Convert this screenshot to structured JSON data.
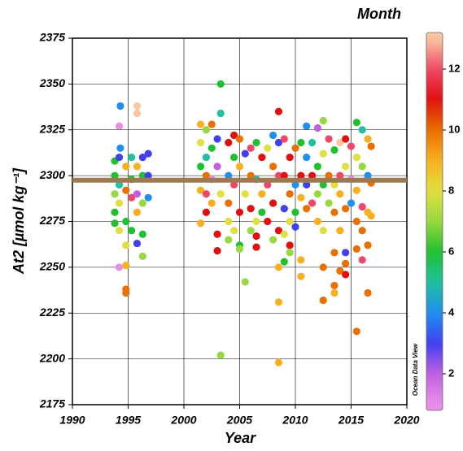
{
  "chart_data": {
    "type": "scatter",
    "xlabel": "Year",
    "ylabel": "At2 [µmol kg⁻¹]",
    "colorbar_title": "Month",
    "watermark": "Ocean Data View",
    "xlim": [
      1990,
      2020
    ],
    "xticks": [
      1990,
      1995,
      2000,
      2005,
      2010,
      2015,
      2020
    ],
    "ylim": [
      2175,
      2375
    ],
    "yticks": [
      2175,
      2200,
      2225,
      2250,
      2275,
      2300,
      2325,
      2350,
      2375
    ],
    "clim": [
      0.8,
      13.2
    ],
    "cticks": [
      2,
      4,
      6,
      8,
      10,
      12
    ],
    "colormap": [
      [
        1,
        "#e890e8"
      ],
      [
        2,
        "#c060e0"
      ],
      [
        3,
        "#4040f0"
      ],
      [
        4,
        "#2090f0"
      ],
      [
        5,
        "#20c0a0"
      ],
      [
        6,
        "#20c030"
      ],
      [
        7,
        "#98d840"
      ],
      [
        8,
        "#e0e040"
      ],
      [
        9,
        "#f8b020"
      ],
      [
        10,
        "#e87000"
      ],
      [
        11,
        "#e01010"
      ],
      [
        12,
        "#f04868"
      ],
      [
        13,
        "#f8c8a0"
      ]
    ],
    "grid": true,
    "reference_line": {
      "value": 2297.5,
      "color": "#a07850"
    },
    "x": [
      1993.8,
      1993.8,
      1993.8,
      1993.8,
      1993.8,
      1994.2,
      1994.2,
      1994.2,
      1994.2,
      1994.2,
      1994.2,
      1994.3,
      1994.3,
      1994.8,
      1994.8,
      1994.8,
      1994.8,
      1994.8,
      1994.8,
      1994.8,
      1995.3,
      1995.3,
      1995.3,
      1995.3,
      1995.8,
      1995.8,
      1995.8,
      1995.8,
      1995.8,
      1995.8,
      1996.3,
      1996.3,
      1996.3,
      1996.3,
      1996.3,
      1996.8,
      1996.8,
      1996.8,
      2001.5,
      2001.5,
      2001.5,
      2001.5,
      2001.5,
      2002,
      2002,
      2002,
      2002,
      2002,
      2002.5,
      2002.5,
      2002.5,
      2002.5,
      2003,
      2003,
      2003,
      2003,
      2003.3,
      2003.3,
      2003.3,
      2003.3,
      2004,
      2004,
      2004,
      2004,
      2004,
      2004.5,
      2004.5,
      2004.5,
      2004.5,
      2005,
      2005,
      2005,
      2005,
      2005,
      2005.5,
      2005.5,
      2005.5,
      2006,
      2006,
      2006,
      2006,
      2006.5,
      2006.5,
      2006.5,
      2006.5,
      2006.5,
      2007,
      2007,
      2007,
      2007.5,
      2007.5,
      2007.5,
      2008,
      2008,
      2008,
      2008,
      2008.5,
      2008.5,
      2008.5,
      2008.5,
      2008.5,
      2008.5,
      2008.5,
      2009,
      2009,
      2009,
      2009,
      2009,
      2009.5,
      2009.5,
      2009.5,
      2009.5,
      2009.5,
      2010,
      2010,
      2010,
      2010,
      2010.5,
      2010.5,
      2010.5,
      2010.5,
      2010.5,
      2011,
      2011,
      2011,
      2011,
      2011.5,
      2011.5,
      2011.5,
      2012,
      2012,
      2012,
      2012,
      2012.5,
      2012.5,
      2012.5,
      2012.5,
      2012.5,
      2012.5,
      2013,
      2013,
      2013,
      2013.5,
      2013.5,
      2013.5,
      2013.5,
      2013.5,
      2013.5,
      2014,
      2014,
      2014,
      2014,
      2014,
      2014.5,
      2014.5,
      2014.5,
      2014.5,
      2014.5,
      2014.5,
      2015,
      2015,
      2015,
      2015.5,
      2015.5,
      2015.5,
      2015.5,
      2015.5,
      2015.5,
      2016,
      2016,
      2016,
      2016,
      2016,
      2016.5,
      2016.5,
      2016.5,
      2016.5,
      2016.5,
      2016.8,
      2016.8,
      2016.8
    ],
    "values": [
      2308,
      2300,
      2290,
      2280,
      2274,
      2327,
      2310,
      2295,
      2285,
      2250,
      2270,
      2338,
      2315,
      2305,
      2292,
      2275,
      2262,
      2251,
      2238,
      2236,
      2310,
      2298,
      2288,
      2270,
      2338,
      2334,
      2305,
      2290,
      2280,
      2263,
      2310,
      2300,
      2285,
      2268,
      2256,
      2312,
      2300,
      2288,
      2328,
      2318,
      2305,
      2292,
      2274,
      2325,
      2310,
      2300,
      2290,
      2280,
      2328,
      2315,
      2298,
      2285,
      2268,
      2259,
      2320,
      2305,
      2350,
      2334,
      2202,
      2290,
      2318,
      2300,
      2285,
      2275,
      2265,
      2322,
      2310,
      2295,
      2270,
      2320,
      2305,
      2280,
      2262,
      2260,
      2242,
      2312,
      2290,
      2315,
      2300,
      2282,
      2270,
      2318,
      2298,
      2275,
      2267,
      2261,
      2310,
      2290,
      2280,
      2315,
      2295,
      2275,
      2322,
      2305,
      2285,
      2265,
      2335,
      2318,
      2300,
      2270,
      2250,
      2231,
      2198,
      2320,
      2300,
      2282,
      2253,
      2268,
      2310,
      2290,
      2275,
      2262,
      2258,
      2315,
      2295,
      2280,
      2272,
      2318,
      2300,
      2288,
      2254,
      2245,
      2327,
      2310,
      2295,
      2282,
      2318,
      2300,
      2285,
      2326,
      2305,
      2290,
      2275,
      2330,
      2312,
      2295,
      2270,
      2250,
      2232,
      2320,
      2300,
      2285,
      2314,
      2295,
      2280,
      2258,
      2240,
      2236,
      2318,
      2300,
      2290,
      2270,
      2248,
      2320,
      2305,
      2282,
      2252,
      2246,
      2258,
      2316,
      2298,
      2285,
      2329,
      2310,
      2292,
      2275,
      2215,
      2260,
      2325,
      2305,
      2283,
      2270,
      2254,
      2320,
      2300,
      2280,
      2262,
      2236,
      2316,
      2296,
      2278
    ],
    "months": [
      6,
      6,
      7,
      6,
      6,
      1,
      3,
      5,
      8,
      1,
      8,
      4,
      4,
      9,
      10,
      6,
      8,
      9,
      10,
      10,
      5,
      6,
      12,
      6,
      13,
      13,
      9,
      2,
      9,
      3,
      3,
      6,
      7,
      6,
      7,
      3,
      3,
      4,
      9,
      8,
      6,
      9,
      9,
      7,
      5,
      10,
      12,
      11,
      10,
      6,
      1,
      9,
      11,
      11,
      3,
      2,
      6,
      5,
      7,
      8,
      11,
      4,
      10,
      8,
      7,
      11,
      6,
      12,
      8,
      10,
      9,
      11,
      6,
      7,
      7,
      3,
      8,
      12,
      10,
      11,
      7,
      6,
      5,
      8,
      11,
      11,
      11,
      9,
      6,
      8,
      12,
      11,
      4,
      10,
      11,
      7,
      11,
      3,
      12,
      11,
      9,
      9,
      9,
      12,
      11,
      3,
      6,
      8,
      11,
      10,
      8,
      11,
      7,
      10,
      4,
      6,
      3,
      6,
      11,
      9,
      9,
      9,
      4,
      4,
      3,
      10,
      5,
      11,
      12,
      2,
      6,
      7,
      9,
      7,
      8,
      6,
      8,
      10,
      10,
      12,
      10,
      7,
      6,
      8,
      10,
      10,
      10,
      9,
      13,
      12,
      9,
      9,
      10,
      11,
      8,
      10,
      10,
      11,
      3,
      12,
      1,
      4,
      6,
      8,
      9,
      10,
      10,
      10,
      5,
      7,
      12,
      10,
      12,
      9,
      4,
      9,
      10,
      10,
      10,
      10,
      9
    ]
  }
}
